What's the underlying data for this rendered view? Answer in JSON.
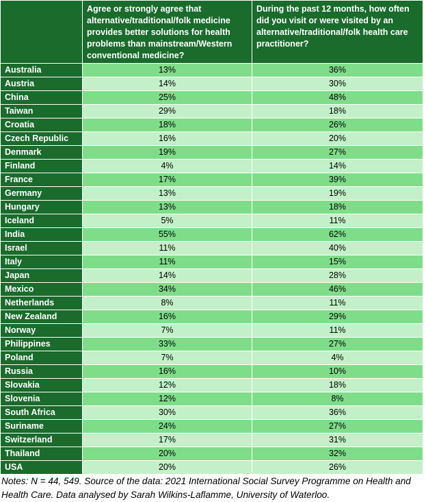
{
  "chart_data": {
    "type": "table",
    "columns": [
      "",
      "Agree or strongly agree that alternative/traditional/folk medicine provides better solutions for health problems than mainstream/Western conventional medicine?",
      "During the past 12 months, how often did you visit or were visited by an alternative/traditional/folk health care practitioner?"
    ],
    "rows": [
      {
        "country": "Australia",
        "agree": "13%",
        "visited": "36%"
      },
      {
        "country": "Austria",
        "agree": "14%",
        "visited": "30%"
      },
      {
        "country": "China",
        "agree": "25%",
        "visited": "48%"
      },
      {
        "country": "Taiwan",
        "agree": "29%",
        "visited": "18%"
      },
      {
        "country": "Croatia",
        "agree": "18%",
        "visited": "26%"
      },
      {
        "country": "Czech Republic",
        "agree": "16%",
        "visited": "20%"
      },
      {
        "country": "Denmark",
        "agree": "19%",
        "visited": "27%"
      },
      {
        "country": "Finland",
        "agree": "4%",
        "visited": "14%"
      },
      {
        "country": "France",
        "agree": "17%",
        "visited": "39%"
      },
      {
        "country": "Germany",
        "agree": "13%",
        "visited": "19%"
      },
      {
        "country": "Hungary",
        "agree": "13%",
        "visited": "18%"
      },
      {
        "country": "Iceland",
        "agree": "5%",
        "visited": "11%"
      },
      {
        "country": "India",
        "agree": "55%",
        "visited": "62%"
      },
      {
        "country": "Israel",
        "agree": "11%",
        "visited": "40%"
      },
      {
        "country": "Italy",
        "agree": "11%",
        "visited": "15%"
      },
      {
        "country": "Japan",
        "agree": "14%",
        "visited": "28%"
      },
      {
        "country": "Mexico",
        "agree": "34%",
        "visited": "46%"
      },
      {
        "country": "Netherlands",
        "agree": "8%",
        "visited": "11%"
      },
      {
        "country": "New Zealand",
        "agree": "16%",
        "visited": "29%"
      },
      {
        "country": "Norway",
        "agree": "7%",
        "visited": "11%"
      },
      {
        "country": "Philippines",
        "agree": "33%",
        "visited": "27%"
      },
      {
        "country": "Poland",
        "agree": "7%",
        "visited": "4%"
      },
      {
        "country": "Russia",
        "agree": "16%",
        "visited": "10%"
      },
      {
        "country": "Slovakia",
        "agree": "12%",
        "visited": "18%"
      },
      {
        "country": "Slovenia",
        "agree": "12%",
        "visited": "8%"
      },
      {
        "country": "South Africa",
        "agree": "30%",
        "visited": "36%"
      },
      {
        "country": "Suriname",
        "agree": "24%",
        "visited": "27%"
      },
      {
        "country": "Switzerland",
        "agree": "17%",
        "visited": "31%"
      },
      {
        "country": "Thailand",
        "agree": "20%",
        "visited": "32%"
      },
      {
        "country": "USA",
        "agree": "20%",
        "visited": "26%"
      }
    ],
    "notes": "Notes: N = 44, 549. Source of the data: 2021 International Social Survey Programme on Health and Health Care. Data analysed by Sarah Wilkins-Laflamme, University of Waterloo.",
    "colors": {
      "header_bg": "#1a6b2c",
      "header_text": "#ffffff",
      "row_odd": "#7fdd8a",
      "row_even": "#c3f0c8"
    }
  }
}
